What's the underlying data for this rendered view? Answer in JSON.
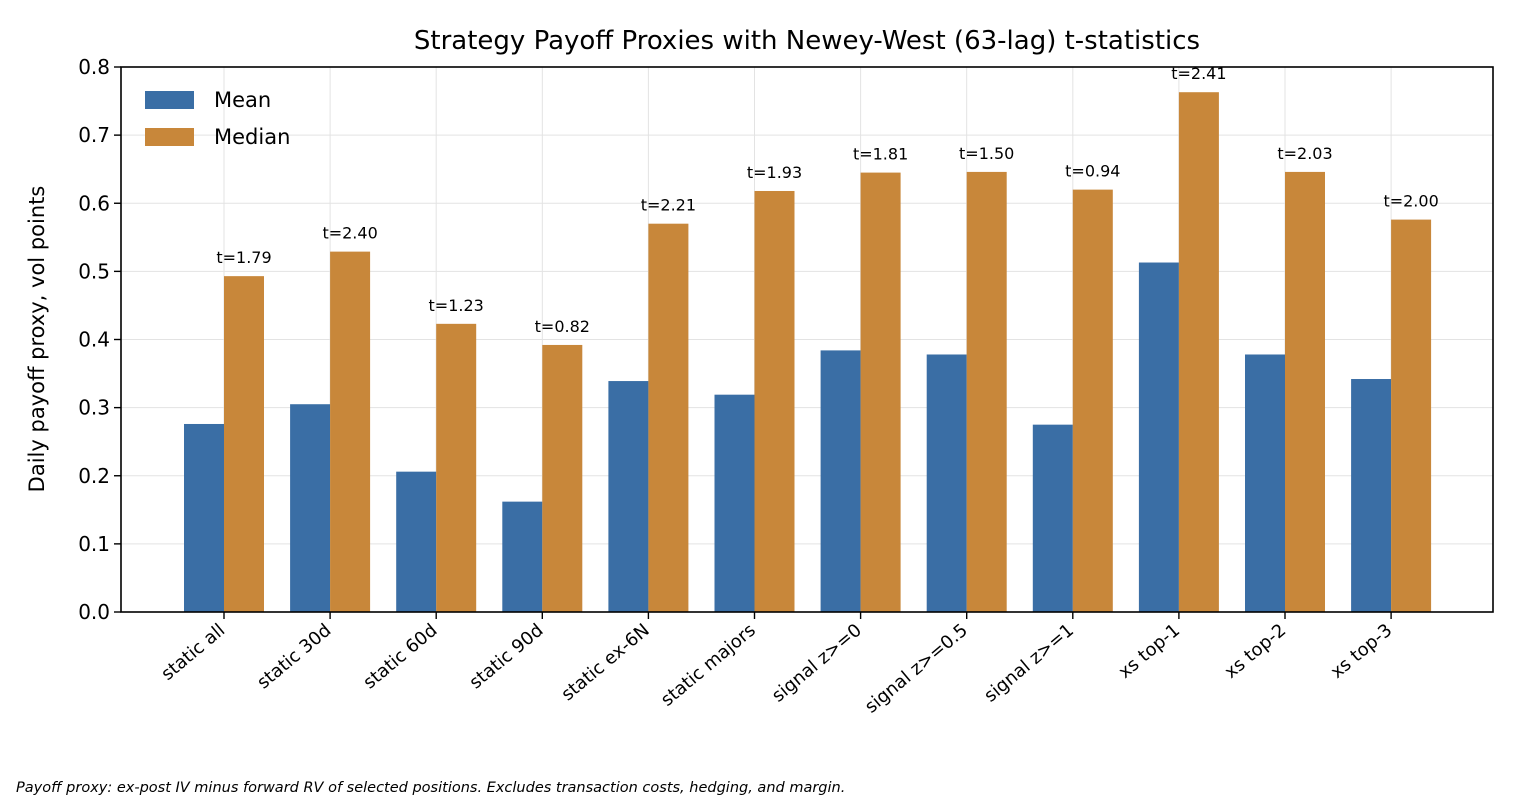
{
  "chart_data": {
    "type": "bar",
    "title": "Strategy Payoff Proxies with Newey-West (63-lag) t-statistics",
    "xlabel": "",
    "ylabel": "Daily payoff proxy, vol points",
    "ylim": [
      0,
      0.8
    ],
    "yticks": [
      "0.0",
      "0.1",
      "0.2",
      "0.3",
      "0.4",
      "0.5",
      "0.6",
      "0.7",
      "0.8"
    ],
    "grid": true,
    "legend_position": "upper-left",
    "categories": [
      "static all",
      "static 30d",
      "static 60d",
      "static 90d",
      "static ex-6N",
      "static majors",
      "signal z>=0",
      "signal z>=0.5",
      "signal z>=1",
      "xs top-1",
      "xs top-2",
      "xs top-3"
    ],
    "series": [
      {
        "name": "Mean",
        "color": "#3a6ea5",
        "values": [
          0.276,
          0.305,
          0.206,
          0.162,
          0.339,
          0.319,
          0.384,
          0.378,
          0.275,
          0.513,
          0.378,
          0.342
        ]
      },
      {
        "name": "Median",
        "color": "#c8873a",
        "values": [
          0.493,
          0.529,
          0.423,
          0.392,
          0.57,
          0.618,
          0.645,
          0.646,
          0.62,
          0.763,
          0.646,
          0.576
        ]
      }
    ],
    "annotations": [
      "t=1.79",
      "t=2.40",
      "t=1.23",
      "t=0.82",
      "t=2.21",
      "t=1.93",
      "t=1.81",
      "t=1.50",
      "t=0.94",
      "t=2.41",
      "t=2.03",
      "t=2.00"
    ]
  },
  "footnote": "Payoff proxy: ex-post IV minus forward RV of selected positions. Excludes transaction costs, hedging, and margin."
}
